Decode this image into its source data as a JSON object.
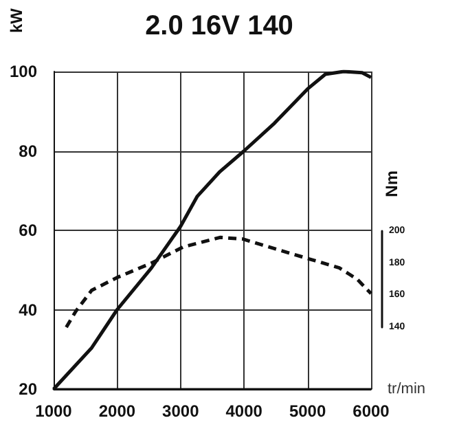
{
  "chart_data": {
    "type": "line",
    "title": "2.0 16V 140",
    "xlabel": "tr/min",
    "ylabel": "kW",
    "y2label": "Nm",
    "xlim": [
      1000,
      6000
    ],
    "xticks": [
      1000,
      2000,
      3000,
      4000,
      5000,
      6000
    ],
    "ylim": [
      20,
      100
    ],
    "yticks": [
      20,
      40,
      60,
      80,
      100
    ],
    "y2lim": [
      140,
      200
    ],
    "y2ticks": [
      140,
      160,
      180,
      200
    ],
    "grid": true,
    "marker": "none",
    "series": [
      {
        "color": "#111111",
        "line_style": "solid",
        "x": [
          1000,
          1600,
          2000,
          2540,
          2650,
          3000,
          3260,
          3620,
          4000,
          4480,
          5000,
          5280,
          5570,
          5860,
          6000
        ],
        "values": [
          20,
          30.4,
          40,
          50.5,
          53,
          61,
          68.5,
          74.8,
          80,
          87,
          95.6,
          99.3,
          100,
          99.7,
          98.5
        ]
      },
      {
        "color": "#111111",
        "line_style": "dashed",
        "axis": "y2",
        "x": [
          1200,
          1350,
          1600,
          2000,
          2540,
          3040,
          3620,
          3980,
          4480,
          4990,
          5500,
          5780,
          6000
        ],
        "values": [
          140,
          150,
          163,
          171,
          180,
          190,
          196,
          195,
          189,
          183,
          177,
          170,
          161
        ]
      }
    ]
  }
}
